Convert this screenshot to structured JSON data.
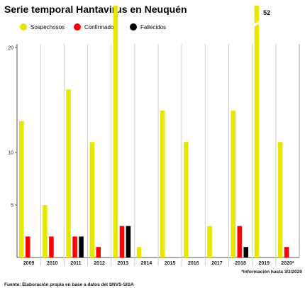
{
  "chart_data": {
    "type": "bar",
    "title": "Serie temporal Hantavirus en Neuquén",
    "categories": [
      "2009",
      "2010",
      "2011",
      "2012",
      "2013",
      "2014",
      "2015",
      "2016",
      "2017",
      "2018",
      "2019",
      "2020*"
    ],
    "series": [
      {
        "name": "Sospechosos",
        "color": "#e6e600",
        "values": [
          13,
          5,
          16,
          11,
          24,
          1,
          14,
          11,
          3,
          14,
          52,
          11
        ]
      },
      {
        "name": "Confirmados",
        "color": "#ff0000",
        "values": [
          2,
          2,
          2,
          1,
          3,
          0,
          0,
          0,
          0,
          3,
          0,
          1
        ]
      },
      {
        "name": "Fallecidos",
        "color": "#000000",
        "values": [
          0,
          0,
          2,
          0,
          3,
          0,
          0,
          0,
          0,
          1,
          0,
          0
        ]
      }
    ],
    "yticks": [
      "5",
      "10",
      "20"
    ],
    "ylim": [
      0,
      28
    ],
    "axis_break": true,
    "value_labels": [
      {
        "category": "2019",
        "series": "Sospechosos",
        "text": "52"
      }
    ],
    "grid": "vertical separators",
    "legend": "top-left",
    "note": "*Información hasta 3/2/2020",
    "source": "Fuente: Elaboración propia en base a datos del SNVS-SISA"
  }
}
